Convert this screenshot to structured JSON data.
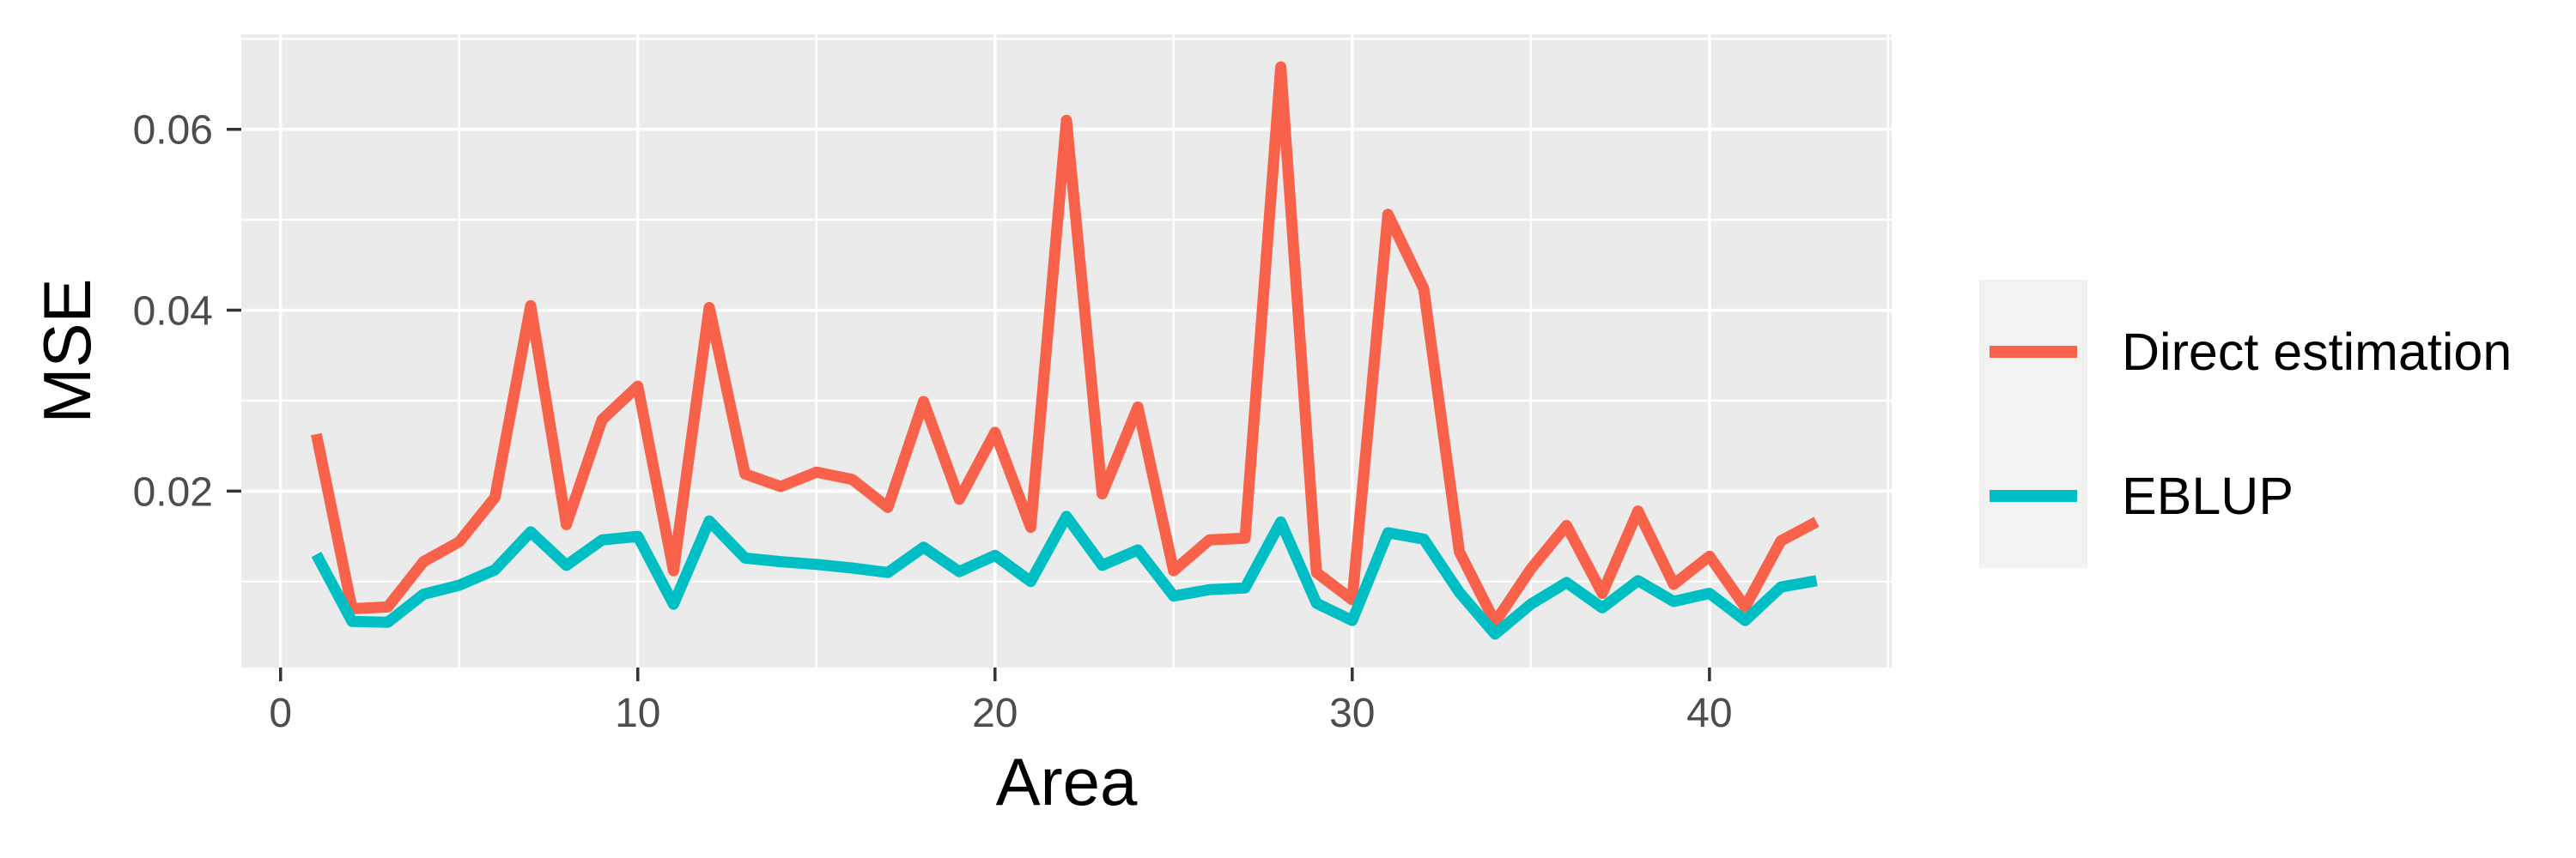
{
  "chart_data": {
    "type": "line",
    "title": "",
    "xlabel": "Area",
    "ylabel": "MSE",
    "x": [
      1,
      2,
      3,
      4,
      5,
      6,
      7,
      8,
      9,
      10,
      11,
      12,
      13,
      14,
      15,
      16,
      17,
      18,
      19,
      20,
      21,
      22,
      23,
      24,
      25,
      26,
      27,
      28,
      29,
      30,
      31,
      32,
      33,
      34,
      35,
      36,
      37,
      38,
      39,
      40,
      41,
      42,
      43
    ],
    "series": [
      {
        "name": "Direct estimation",
        "color": "#F8624A",
        "values": [
          0.0263,
          0.007,
          0.0072,
          0.0122,
          0.0144,
          0.0193,
          0.0405,
          0.0163,
          0.0279,
          0.0316,
          0.0112,
          0.0403,
          0.0219,
          0.0205,
          0.0221,
          0.0213,
          0.0182,
          0.0299,
          0.0191,
          0.0265,
          0.016,
          0.061,
          0.0197,
          0.0293,
          0.0112,
          0.0146,
          0.0148,
          0.0669,
          0.011,
          0.008,
          0.0506,
          0.0424,
          0.0133,
          0.0055,
          0.0114,
          0.0162,
          0.0087,
          0.0178,
          0.0097,
          0.0128,
          0.0072,
          0.0145,
          0.0166
        ]
      },
      {
        "name": "EBLUP",
        "color": "#00BFC4",
        "values": [
          0.013,
          0.0056,
          0.0055,
          0.0086,
          0.0096,
          0.0113,
          0.0155,
          0.0118,
          0.0146,
          0.015,
          0.0075,
          0.0167,
          0.0126,
          0.0122,
          0.0119,
          0.0115,
          0.011,
          0.0138,
          0.0111,
          0.0129,
          0.01,
          0.0172,
          0.0118,
          0.0135,
          0.0084,
          0.0091,
          0.0093,
          0.0166,
          0.0076,
          0.0057,
          0.0154,
          0.0147,
          0.0088,
          0.0042,
          0.0075,
          0.0099,
          0.0071,
          0.0101,
          0.0078,
          0.0087,
          0.0057,
          0.0094,
          0.0101
        ]
      }
    ],
    "xlim": [
      -1.1,
      45.1
    ],
    "ylim": [
      0.0005,
      0.0705
    ],
    "x_major_ticks": [
      0,
      10,
      20,
      30,
      40
    ],
    "x_minor_ticks": [
      5,
      15,
      25,
      35,
      45
    ],
    "y_major_ticks": [
      0.02,
      0.04,
      0.06
    ],
    "y_minor_ticks": [
      0.01,
      0.03,
      0.05,
      0.07
    ],
    "x_tick_labels": [
      "0",
      "10",
      "20",
      "30",
      "40"
    ],
    "y_tick_labels": [
      "0.02",
      "0.04",
      "0.06"
    ],
    "grid": true,
    "legend_position": "right",
    "line_width": 13,
    "colors": {
      "panel_bg": "#EBEBEB",
      "grid": "#FFFFFF",
      "legend_key_bg": "#F2F2F2",
      "tick_label": "#4D4D4D",
      "tick_mark": "#333333",
      "axis_title": "#000000",
      "figure_bg": "#FFFFFF"
    }
  }
}
